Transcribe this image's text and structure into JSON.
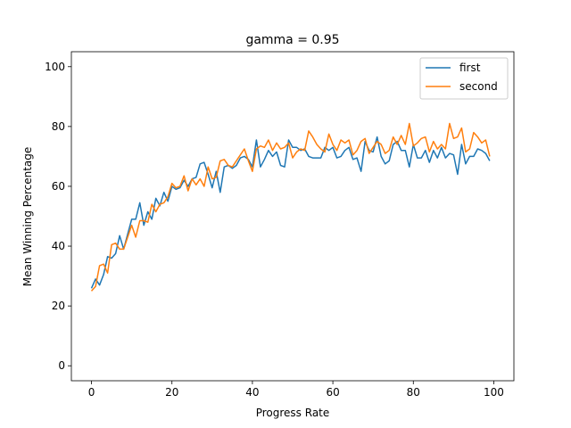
{
  "chart_data": {
    "type": "line",
    "title": "gamma = 0.95",
    "xlabel": "Progress Rate",
    "ylabel": "Mean Winning Percentage",
    "xlim": [
      -5,
      105
    ],
    "ylim": [
      -5,
      105
    ],
    "xticks": [
      0,
      20,
      40,
      60,
      80,
      100
    ],
    "yticks": [
      0,
      20,
      40,
      60,
      80,
      100
    ],
    "grid": false,
    "legend_position": "upper right",
    "x": [
      0,
      1,
      2,
      3,
      4,
      5,
      6,
      7,
      8,
      9,
      10,
      11,
      12,
      13,
      14,
      15,
      16,
      17,
      18,
      19,
      20,
      21,
      22,
      23,
      24,
      25,
      26,
      27,
      28,
      29,
      30,
      31,
      32,
      33,
      34,
      35,
      36,
      37,
      38,
      39,
      40,
      41,
      42,
      43,
      44,
      45,
      46,
      47,
      48,
      49,
      50,
      51,
      52,
      53,
      54,
      55,
      56,
      57,
      58,
      59,
      60,
      61,
      62,
      63,
      64,
      65,
      66,
      67,
      68,
      69,
      70,
      71,
      72,
      73,
      74,
      75,
      76,
      77,
      78,
      79,
      80,
      81,
      82,
      83,
      84,
      85,
      86,
      87,
      88,
      89,
      90,
      91,
      92,
      93,
      94,
      95,
      96,
      97,
      98,
      99
    ],
    "series": [
      {
        "name": "first",
        "color": "#1f77b4",
        "values": [
          25.9,
          29.0,
          27.0,
          30.5,
          36.5,
          36.0,
          37.5,
          43.5,
          39.0,
          44.0,
          49.0,
          49.0,
          54.5,
          47.0,
          51.5,
          49.0,
          56.0,
          53.5,
          58.0,
          55.0,
          60.0,
          59.0,
          59.5,
          62.0,
          60.0,
          62.5,
          63.0,
          67.5,
          68.0,
          64.0,
          59.5,
          65.0,
          58.0,
          66.5,
          67.0,
          66.0,
          67.0,
          69.5,
          70.0,
          69.0,
          66.5,
          75.5,
          66.5,
          69.0,
          72.0,
          70.0,
          71.5,
          67.0,
          66.5,
          75.5,
          73.0,
          73.0,
          72.0,
          72.5,
          70.0,
          69.5,
          69.5,
          69.5,
          73.0,
          72.0,
          73.0,
          69.5,
          70.0,
          72.0,
          73.0,
          69.0,
          69.5,
          65.0,
          75.0,
          72.0,
          71.5,
          76.5,
          70.0,
          67.5,
          68.5,
          74.0,
          75.0,
          72.0,
          72.0,
          66.5,
          74.0,
          69.5,
          69.5,
          72.0,
          68.0,
          72.0,
          69.5,
          73.0,
          69.5,
          71.0,
          70.5,
          64.0,
          74.0,
          67.5,
          70.0,
          70.0,
          72.5,
          72.0,
          71.0,
          68.5
        ]
      },
      {
        "name": "second",
        "color": "#ff7f0e",
        "values": [
          25.0,
          26.5,
          33.5,
          34.0,
          31.0,
          40.5,
          41.0,
          39.0,
          39.0,
          43.0,
          47.0,
          43.0,
          48.5,
          48.5,
          48.0,
          54.0,
          51.5,
          54.0,
          54.5,
          56.5,
          61.0,
          59.5,
          60.0,
          63.5,
          58.5,
          62.5,
          60.5,
          62.5,
          60.0,
          66.5,
          62.5,
          63.0,
          68.5,
          69.0,
          67.0,
          66.5,
          68.5,
          70.5,
          72.5,
          68.5,
          65.0,
          72.5,
          73.5,
          73.0,
          75.5,
          72.0,
          74.5,
          72.5,
          73.0,
          74.5,
          69.5,
          71.5,
          72.5,
          72.0,
          78.5,
          76.5,
          74.0,
          72.5,
          71.5,
          77.5,
          74.0,
          72.0,
          75.5,
          74.5,
          75.5,
          70.5,
          72.0,
          75.0,
          76.0,
          71.0,
          73.0,
          75.0,
          74.0,
          71.0,
          72.0,
          76.5,
          74.0,
          77.0,
          74.0,
          81.0,
          73.5,
          74.5,
          76.0,
          76.5,
          71.5,
          75.0,
          72.5,
          74.0,
          72.5,
          81.0,
          76.0,
          76.5,
          79.5,
          71.5,
          72.5,
          78.0,
          76.5,
          74.5,
          75.5,
          70.0
        ]
      }
    ]
  }
}
